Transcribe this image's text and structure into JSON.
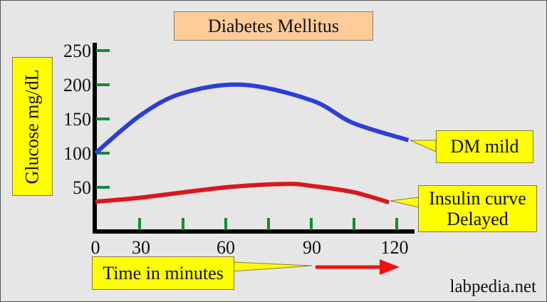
{
  "chart_data": {
    "type": "line",
    "title": "Diabetes Mellitus",
    "xlabel": "Time in minutes",
    "ylabel": "Glucose mg/dL",
    "x_ticks": [
      "0",
      "30",
      "60",
      "90",
      "120"
    ],
    "y_ticks": [
      "50",
      "100",
      "150",
      "200",
      "250"
    ],
    "series": [
      {
        "name": "DM mild",
        "color": "#2b3fd6",
        "x": [
          0,
          30,
          45,
          66,
          90,
          105,
          125
        ],
        "y": [
          100,
          156,
          188,
          200,
          177,
          144,
          119
        ]
      },
      {
        "name": "Insulin curve Delayed",
        "color": "#d9181e",
        "x": [
          0,
          30,
          60,
          81,
          90,
          105,
          118
        ],
        "y": [
          29,
          35,
          50,
          55,
          52,
          43,
          28
        ]
      }
    ],
    "grid": false,
    "legend": "callouts-right"
  },
  "labels": {
    "dm": "DM mild",
    "ins1": "Insulin curve",
    "ins2": "Delayed",
    "credit": "labpedia.net"
  }
}
